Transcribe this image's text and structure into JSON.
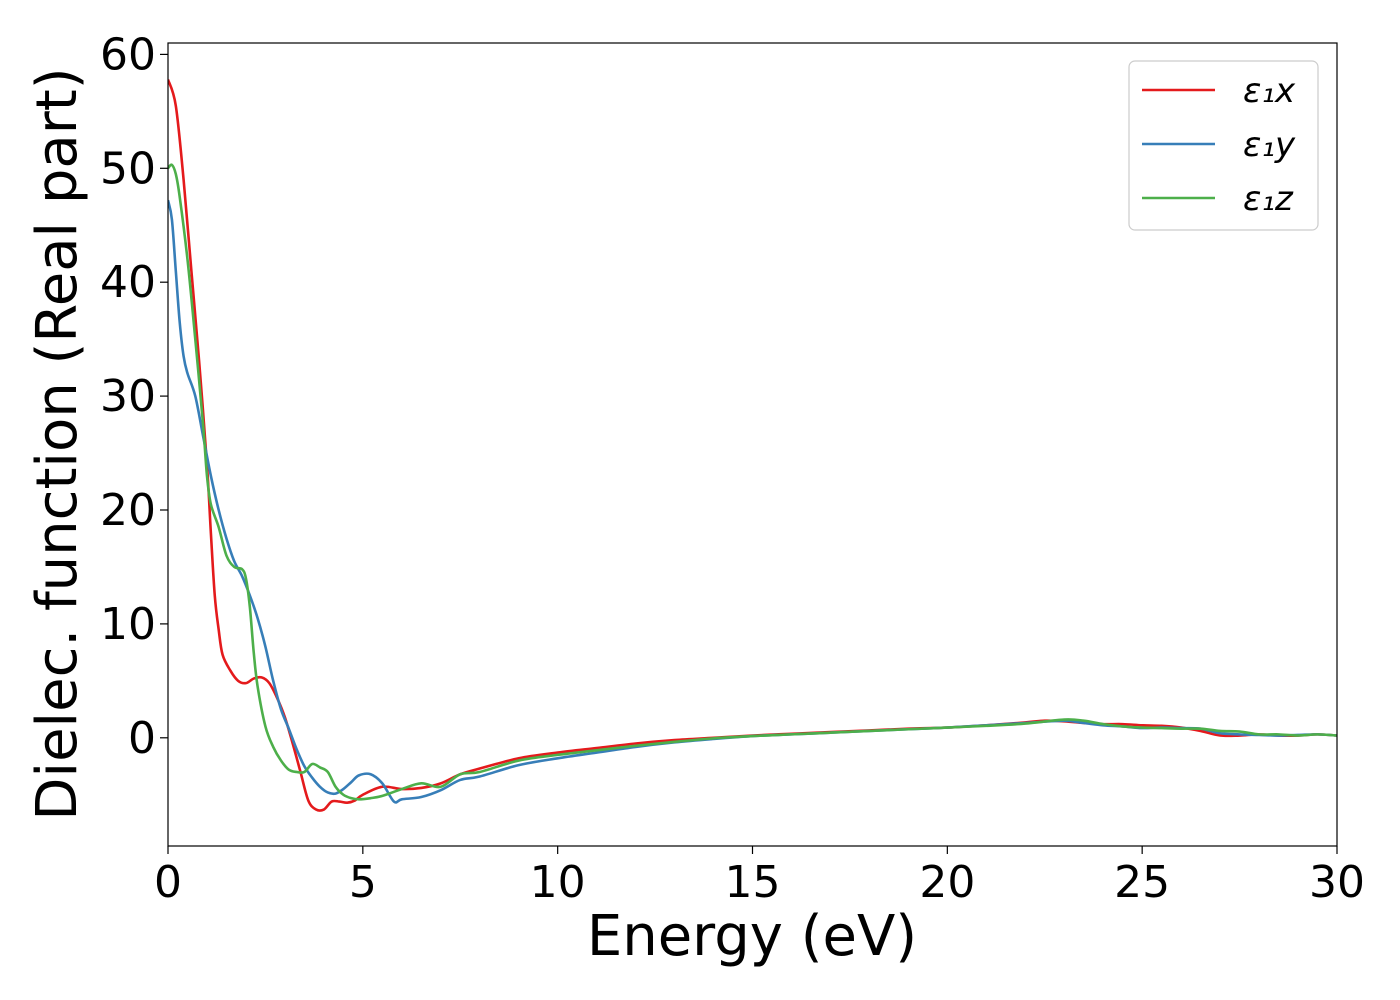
{
  "chart_data": {
    "type": "line",
    "title": "",
    "xlabel": "Energy (eV)",
    "ylabel": "Dielec. function (Real part)",
    "xlim": [
      0,
      30
    ],
    "ylim": [
      -9.5,
      61
    ],
    "xticks": [
      0,
      5,
      10,
      15,
      20,
      25,
      30
    ],
    "yticks": [
      0,
      10,
      20,
      30,
      40,
      50,
      60
    ],
    "grid": false,
    "legend_position": "top-right",
    "series": [
      {
        "name": "ε₁x",
        "color": "#e41a1c",
        "x": [
          0,
          0.2,
          0.4,
          0.6,
          0.8,
          1.0,
          1.1,
          1.2,
          1.3,
          1.4,
          1.6,
          1.8,
          2.0,
          2.2,
          2.4,
          2.6,
          2.8,
          3.0,
          3.2,
          3.4,
          3.6,
          3.8,
          4.0,
          4.2,
          4.4,
          4.6,
          4.8,
          5.0,
          5.5,
          6.0,
          6.5,
          7.0,
          7.5,
          8.0,
          9.0,
          10.0,
          11.0,
          12.0,
          13.0,
          14.0,
          15.0,
          16.0,
          17.0,
          18.0,
          19.0,
          20.0,
          21.0,
          22.0,
          22.5,
          23.0,
          23.5,
          24.0,
          24.5,
          25.0,
          25.5,
          26.0,
          26.5,
          27.0,
          27.5,
          28.0,
          28.5,
          29.0,
          29.5,
          30.0
        ],
        "y": [
          57.8,
          55.5,
          49.0,
          41.0,
          33.0,
          24.0,
          18.0,
          12.5,
          9.5,
          7.3,
          5.9,
          5.0,
          4.8,
          5.2,
          5.3,
          4.8,
          3.5,
          1.8,
          -0.5,
          -3.0,
          -5.5,
          -6.3,
          -6.3,
          -5.6,
          -5.6,
          -5.7,
          -5.5,
          -5.0,
          -4.3,
          -4.5,
          -4.4,
          -4.0,
          -3.2,
          -2.7,
          -1.8,
          -1.3,
          -0.9,
          -0.5,
          -0.2,
          0.0,
          0.2,
          0.35,
          0.5,
          0.65,
          0.8,
          0.9,
          1.1,
          1.35,
          1.5,
          1.45,
          1.3,
          1.2,
          1.2,
          1.1,
          1.05,
          0.9,
          0.6,
          0.2,
          0.2,
          0.3,
          0.2,
          0.2,
          0.3,
          0.2
        ]
      },
      {
        "name": "ε₁y",
        "color": "#377eb8",
        "x": [
          0,
          0.1,
          0.2,
          0.3,
          0.4,
          0.5,
          0.7,
          0.9,
          1.1,
          1.3,
          1.5,
          1.7,
          1.9,
          2.1,
          2.3,
          2.5,
          2.7,
          2.9,
          3.1,
          3.3,
          3.5,
          3.7,
          3.9,
          4.1,
          4.3,
          4.5,
          4.7,
          4.9,
          5.2,
          5.5,
          5.8,
          6.0,
          6.5,
          7.0,
          7.5,
          8.0,
          9.0,
          10.0,
          11.0,
          12.0,
          13.0,
          14.0,
          15.0,
          16.0,
          17.0,
          18.0,
          19.0,
          20.0,
          21.0,
          22.0,
          23.0,
          23.5,
          24.0,
          24.5,
          25.0,
          25.5,
          26.0,
          26.5,
          27.0,
          27.5,
          28.0,
          28.5,
          29.0,
          29.5,
          30.0
        ],
        "y": [
          47.2,
          45.5,
          41.0,
          36.5,
          33.5,
          32.0,
          30.0,
          26.5,
          23.0,
          20.0,
          17.5,
          15.5,
          14.2,
          12.5,
          10.5,
          8.0,
          5.0,
          2.5,
          0.8,
          -1.0,
          -2.5,
          -3.5,
          -4.3,
          -4.8,
          -4.9,
          -4.5,
          -3.9,
          -3.3,
          -3.2,
          -4.0,
          -5.6,
          -5.4,
          -5.2,
          -4.6,
          -3.7,
          -3.4,
          -2.4,
          -1.8,
          -1.3,
          -0.8,
          -0.4,
          -0.1,
          0.15,
          0.3,
          0.45,
          0.6,
          0.75,
          0.9,
          1.1,
          1.3,
          1.5,
          1.3,
          1.1,
          1.0,
          0.85,
          0.9,
          0.85,
          0.8,
          0.4,
          0.3,
          0.25,
          0.2,
          0.25,
          0.3,
          0.2
        ]
      },
      {
        "name": "ε₁z",
        "color": "#4daf4a",
        "x": [
          0,
          0.1,
          0.2,
          0.3,
          0.5,
          0.7,
          0.9,
          1.0,
          1.1,
          1.3,
          1.5,
          1.7,
          1.9,
          2.0,
          2.1,
          2.2,
          2.3,
          2.5,
          2.7,
          2.9,
          3.1,
          3.3,
          3.5,
          3.7,
          3.9,
          4.1,
          4.3,
          4.5,
          4.7,
          4.9,
          5.2,
          5.5,
          6.0,
          6.5,
          7.0,
          7.5,
          8.0,
          9.0,
          10.0,
          11.0,
          12.0,
          13.0,
          14.0,
          15.0,
          16.0,
          17.0,
          18.0,
          19.0,
          20.0,
          21.0,
          22.0,
          23.0,
          23.5,
          24.0,
          24.5,
          25.0,
          25.5,
          26.0,
          26.5,
          27.0,
          27.5,
          28.0,
          28.5,
          29.0,
          29.5,
          30.0
        ],
        "y": [
          50.0,
          50.3,
          49.5,
          47.5,
          42.0,
          35.0,
          27.5,
          23.0,
          20.5,
          18.5,
          16.0,
          15.0,
          14.8,
          14.0,
          11.5,
          7.5,
          4.5,
          1.0,
          -0.8,
          -2.0,
          -2.8,
          -3.0,
          -3.0,
          -2.3,
          -2.6,
          -3.0,
          -4.3,
          -5.0,
          -5.3,
          -5.4,
          -5.3,
          -5.1,
          -4.5,
          -4.0,
          -4.3,
          -3.2,
          -3.0,
          -2.0,
          -1.5,
          -1.1,
          -0.7,
          -0.35,
          -0.05,
          0.15,
          0.3,
          0.45,
          0.6,
          0.75,
          0.9,
          1.05,
          1.25,
          1.6,
          1.5,
          1.2,
          1.0,
          0.9,
          0.85,
          0.8,
          0.8,
          0.6,
          0.55,
          0.3,
          0.3,
          0.2,
          0.3,
          0.2
        ]
      }
    ]
  }
}
